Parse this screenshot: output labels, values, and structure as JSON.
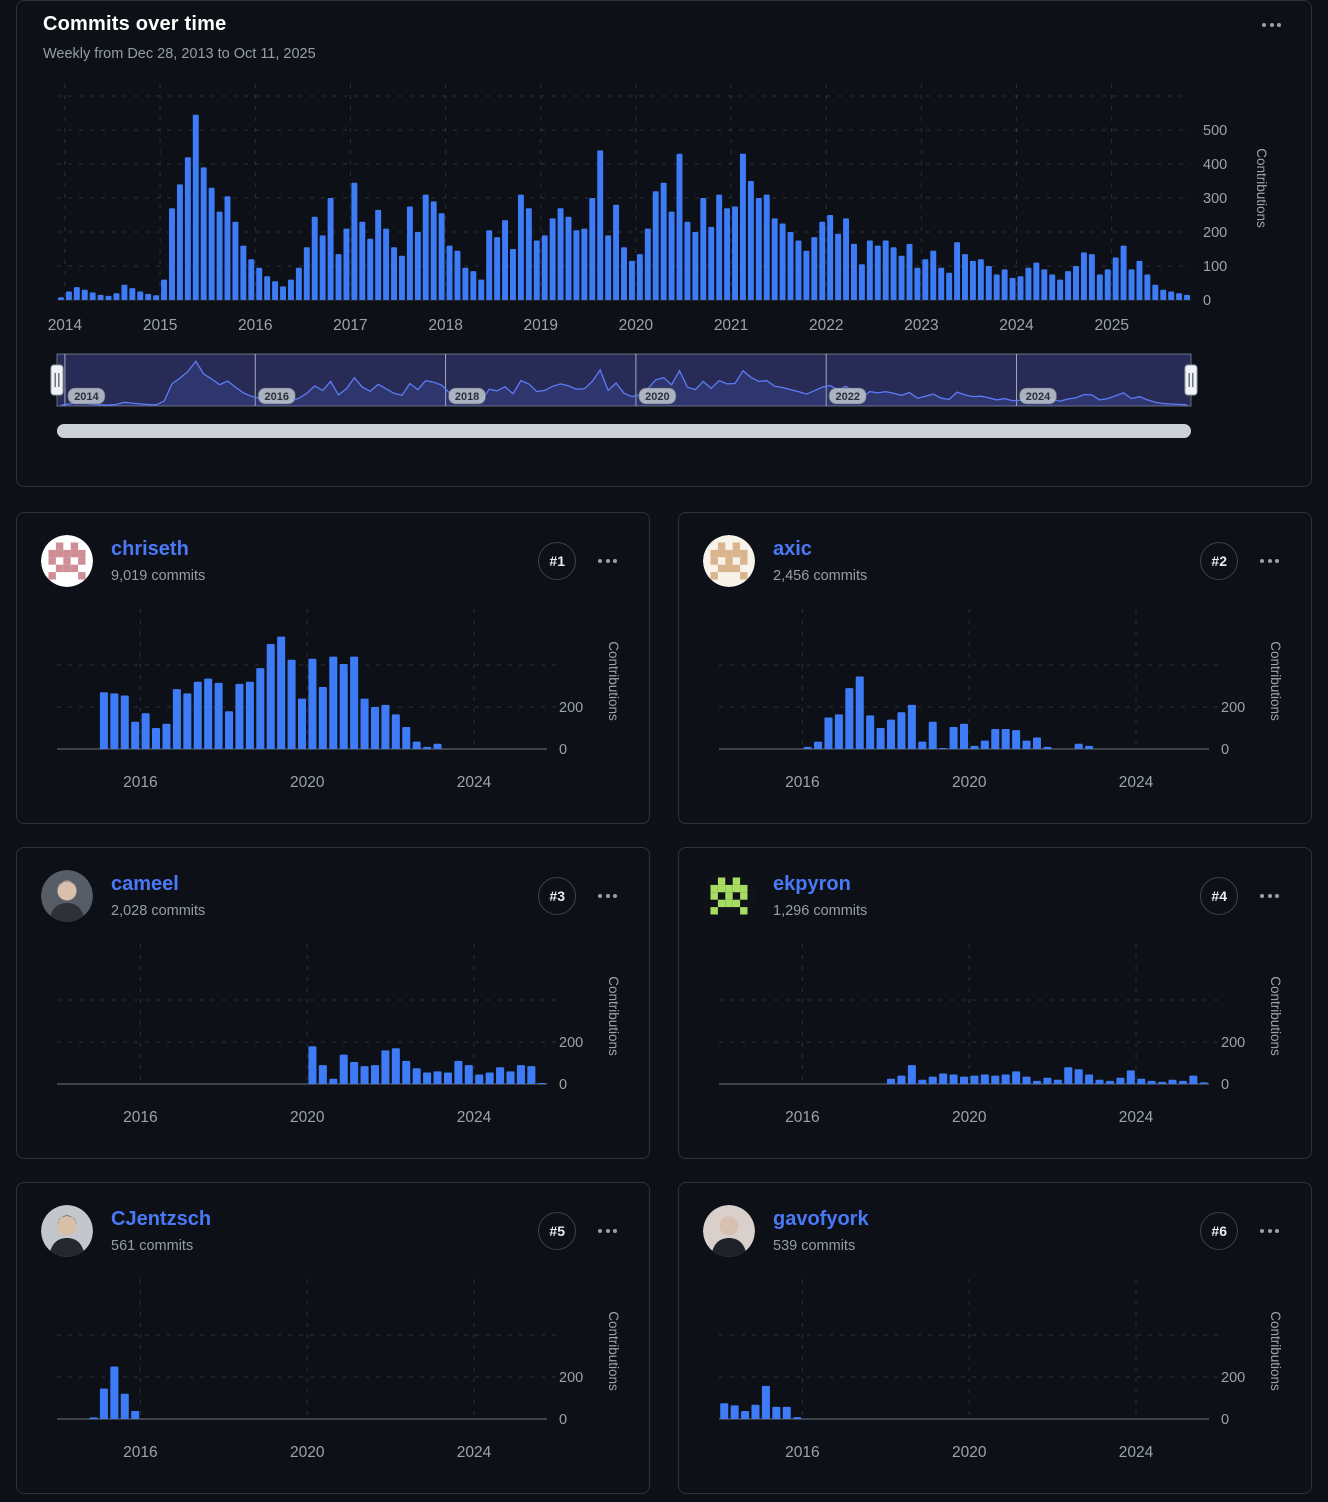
{
  "header": {
    "title": "Commits over time",
    "subtitle": "Weekly from Dec 28, 2013 to Oct 11, 2025",
    "menu_icon": "kebab-menu-icon"
  },
  "colors": {
    "background": "#0d1117",
    "panel_border": "#2d333c",
    "bar": "#3e7bf6",
    "link": "#4a79f7",
    "text_primary": "#ffffff",
    "text_secondary": "#959ea8",
    "gridline": "#79818c",
    "brush_fill": "#272b55",
    "brush_line": "#5d7bf7",
    "scrollbar": "#ccd1d8"
  },
  "chart_data": [
    {
      "role": "overview",
      "type": "bar",
      "title": "Commits over time",
      "bucket": "weekly data aggregated to months",
      "start": "2013-12",
      "end": "2025-10",
      "xlabel": "",
      "ylabel": "Contributions",
      "x_tick_labels": [
        "2014",
        "2015",
        "2016",
        "2017",
        "2018",
        "2019",
        "2020",
        "2021",
        "2022",
        "2023",
        "2024",
        "2025"
      ],
      "y_ticks": [
        0,
        100,
        200,
        300,
        400,
        500
      ],
      "ylim": [
        0,
        632
      ],
      "grid": "dashed",
      "values": [
        8,
        25,
        38,
        30,
        22,
        15,
        12,
        20,
        45,
        35,
        25,
        18,
        14,
        60,
        270,
        340,
        420,
        545,
        390,
        330,
        260,
        305,
        230,
        160,
        120,
        95,
        70,
        55,
        40,
        60,
        95,
        155,
        245,
        190,
        300,
        135,
        210,
        345,
        230,
        180,
        265,
        210,
        155,
        130,
        275,
        200,
        310,
        290,
        255,
        160,
        145,
        95,
        85,
        60,
        205,
        185,
        235,
        150,
        310,
        270,
        175,
        190,
        240,
        270,
        245,
        205,
        210,
        300,
        440,
        190,
        280,
        155,
        115,
        135,
        210,
        320,
        345,
        260,
        430,
        230,
        200,
        300,
        215,
        310,
        270,
        275,
        430,
        350,
        300,
        310,
        240,
        225,
        200,
        175,
        145,
        185,
        230,
        250,
        195,
        240,
        165,
        105,
        175,
        160,
        175,
        155,
        130,
        165,
        95,
        120,
        145,
        95,
        80,
        170,
        135,
        115,
        120,
        100,
        75,
        90,
        65,
        70,
        95,
        110,
        90,
        75,
        60,
        85,
        100,
        140,
        135,
        75,
        90,
        125,
        160,
        90,
        115,
        75,
        45,
        30,
        25,
        20,
        15
      ]
    },
    {
      "role": "card",
      "type": "bar",
      "title": "chriseth contributions",
      "bucket": "quarterly",
      "start": "2014-Q1",
      "ylabel": "Contributions",
      "x_tick_labels": [
        "2016",
        "2020",
        "2024"
      ],
      "y_ticks": [
        0,
        200
      ],
      "ylim": [
        0,
        640
      ],
      "values": [
        0,
        0,
        0,
        0,
        270,
        265,
        255,
        130,
        170,
        100,
        120,
        285,
        265,
        320,
        335,
        315,
        180,
        310,
        320,
        385,
        500,
        535,
        425,
        240,
        430,
        295,
        440,
        405,
        440,
        240,
        200,
        210,
        165,
        105,
        35,
        10,
        25,
        0,
        0,
        0,
        0,
        0,
        0,
        0,
        0,
        0,
        0
      ]
    },
    {
      "role": "card",
      "type": "bar",
      "title": "axic contributions",
      "bucket": "quarterly",
      "start": "2014-Q1",
      "ylabel": "Contributions",
      "x_tick_labels": [
        "2016",
        "2020",
        "2024"
      ],
      "y_ticks": [
        0,
        200
      ],
      "ylim": [
        0,
        640
      ],
      "values": [
        0,
        0,
        0,
        0,
        0,
        0,
        0,
        0,
        10,
        35,
        150,
        165,
        290,
        345,
        160,
        100,
        140,
        175,
        210,
        35,
        130,
        5,
        105,
        120,
        15,
        40,
        95,
        95,
        90,
        40,
        55,
        10,
        0,
        0,
        25,
        15,
        0,
        0,
        0,
        0,
        0,
        0,
        0,
        0,
        0,
        0,
        0
      ]
    },
    {
      "role": "card",
      "type": "bar",
      "title": "cameel contributions",
      "bucket": "quarterly",
      "start": "2014-Q1",
      "ylabel": "Contributions",
      "x_tick_labels": [
        "2016",
        "2020",
        "2024"
      ],
      "y_ticks": [
        0,
        200
      ],
      "ylim": [
        0,
        640
      ],
      "values": [
        0,
        0,
        0,
        0,
        0,
        0,
        0,
        0,
        0,
        0,
        0,
        0,
        0,
        0,
        0,
        0,
        0,
        0,
        0,
        0,
        0,
        0,
        0,
        0,
        180,
        90,
        25,
        140,
        105,
        85,
        90,
        160,
        170,
        110,
        75,
        55,
        60,
        55,
        110,
        90,
        45,
        55,
        80,
        60,
        90,
        85,
        5
      ]
    },
    {
      "role": "card",
      "type": "bar",
      "title": "ekpyron contributions",
      "bucket": "quarterly",
      "start": "2014-Q1",
      "ylabel": "Contributions",
      "x_tick_labels": [
        "2016",
        "2020",
        "2024"
      ],
      "y_ticks": [
        0,
        200
      ],
      "ylim": [
        0,
        640
      ],
      "values": [
        0,
        0,
        0,
        0,
        0,
        0,
        0,
        0,
        0,
        0,
        0,
        0,
        0,
        0,
        0,
        0,
        25,
        40,
        90,
        20,
        35,
        50,
        45,
        35,
        40,
        45,
        40,
        45,
        60,
        35,
        15,
        30,
        20,
        80,
        70,
        45,
        20,
        15,
        30,
        65,
        25,
        15,
        10,
        20,
        15,
        40,
        8
      ]
    },
    {
      "role": "card",
      "type": "bar",
      "title": "CJentzsch contributions",
      "bucket": "quarterly",
      "start": "2014-Q1",
      "ylabel": "Contributions",
      "x_tick_labels": [
        "2016",
        "2020",
        "2024"
      ],
      "y_ticks": [
        0,
        200
      ],
      "ylim": [
        0,
        640
      ],
      "values": [
        0,
        0,
        0,
        8,
        145,
        250,
        120,
        38,
        0,
        0,
        0,
        0,
        0,
        0,
        0,
        0,
        0,
        0,
        0,
        0,
        0,
        0,
        0,
        0,
        0,
        0,
        0,
        0,
        0,
        0,
        0,
        0,
        0,
        0,
        0,
        0,
        0,
        0,
        0,
        0,
        0,
        0,
        0,
        0,
        0,
        0,
        0
      ]
    },
    {
      "role": "card",
      "type": "bar",
      "title": "gavofyork contributions",
      "bucket": "quarterly",
      "start": "2014-Q1",
      "ylabel": "Contributions",
      "x_tick_labels": [
        "2016",
        "2020",
        "2024"
      ],
      "y_ticks": [
        0,
        200
      ],
      "ylim": [
        0,
        640
      ],
      "values": [
        75,
        65,
        38,
        68,
        158,
        58,
        58,
        9,
        0,
        0,
        0,
        0,
        0,
        0,
        0,
        0,
        0,
        0,
        0,
        0,
        0,
        0,
        0,
        0,
        0,
        0,
        0,
        0,
        0,
        0,
        0,
        0,
        0,
        0,
        0,
        0,
        0,
        0,
        0,
        0,
        0,
        0,
        0,
        0,
        0,
        0,
        0
      ]
    }
  ],
  "brush": {
    "year_labels": [
      "2014",
      "2016",
      "2018",
      "2020",
      "2022",
      "2024"
    ],
    "left_handle_icon": "drag-handle-icon",
    "right_handle_icon": "drag-handle-icon"
  },
  "contributors": [
    {
      "name": "chriseth",
      "commits": "9,019 commits",
      "rank": "#1",
      "avatar": {
        "kind": "identicon",
        "bg": "#ffffff",
        "fg": "#cf8d95"
      }
    },
    {
      "name": "axic",
      "commits": "2,456 commits",
      "rank": "#2",
      "avatar": {
        "kind": "identicon",
        "bg": "#f7f2ea",
        "fg": "#d9b48d"
      }
    },
    {
      "name": "cameel",
      "commits": "2,028 commits",
      "rank": "#3",
      "avatar": {
        "kind": "photo",
        "bg": "#565d66",
        "skin": "#d8c0ac",
        "hair": "#d8c0ac",
        "shirt": "#2e3238"
      }
    },
    {
      "name": "ekpyron",
      "commits": "1,296 commits",
      "rank": "#4",
      "avatar": {
        "kind": "identicon",
        "bg": "#0f1216",
        "fg": "#a8dd63"
      }
    },
    {
      "name": "CJentzsch",
      "commits": "561 commits",
      "rank": "#5",
      "avatar": {
        "kind": "photo",
        "bg": "#c3c6ca",
        "skin": "#d8bfa8",
        "hair": "#3a3025",
        "shirt": "#23272e"
      }
    },
    {
      "name": "gavofyork",
      "commits": "539 commits",
      "rank": "#6",
      "avatar": {
        "kind": "photo",
        "bg": "#d9d0cc",
        "skin": "#d8c0b0",
        "hair": "#cfc3b2",
        "shirt": "#1f2228"
      }
    }
  ]
}
